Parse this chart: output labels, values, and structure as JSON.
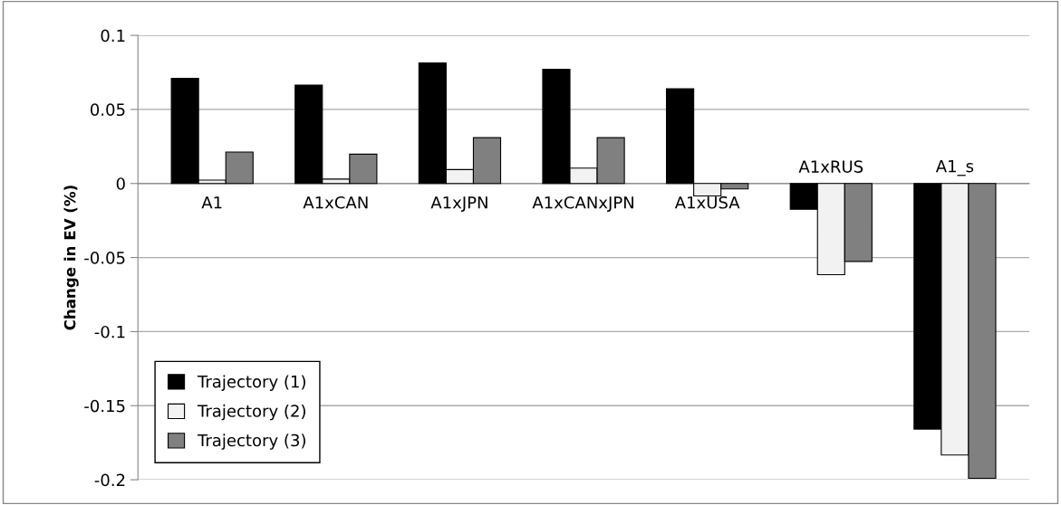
{
  "chart_data": {
    "type": "bar",
    "ylabel": "Change in EV (%)",
    "categories": [
      "A1",
      "A1xCAN",
      "A1xJPN",
      "A1xCANxJPN",
      "A1xUSA",
      "A1xRUS",
      "A1_s"
    ],
    "series": [
      {
        "name": "Trajectory (1)",
        "color": "#000000",
        "values": [
          0.071,
          0.0664,
          0.0813,
          0.0771,
          0.0639,
          -0.0174,
          -0.1658
        ]
      },
      {
        "name": "Trajectory (2)",
        "color": "#f2f2f2",
        "values": [
          0.0023,
          0.003,
          0.0094,
          0.0104,
          -0.0084,
          -0.0616,
          -0.1833
        ]
      },
      {
        "name": "Trajectory (3)",
        "color": "#808080",
        "values": [
          0.0212,
          0.0198,
          0.0309,
          0.0309,
          -0.0037,
          -0.0526,
          -0.199
        ]
      }
    ],
    "ylim": [
      -0.2,
      0.1
    ],
    "yticks": [
      -0.2,
      -0.15,
      -0.1,
      -0.05,
      0,
      0.05,
      0.1
    ],
    "grid": "y",
    "legend": "bottom left"
  }
}
